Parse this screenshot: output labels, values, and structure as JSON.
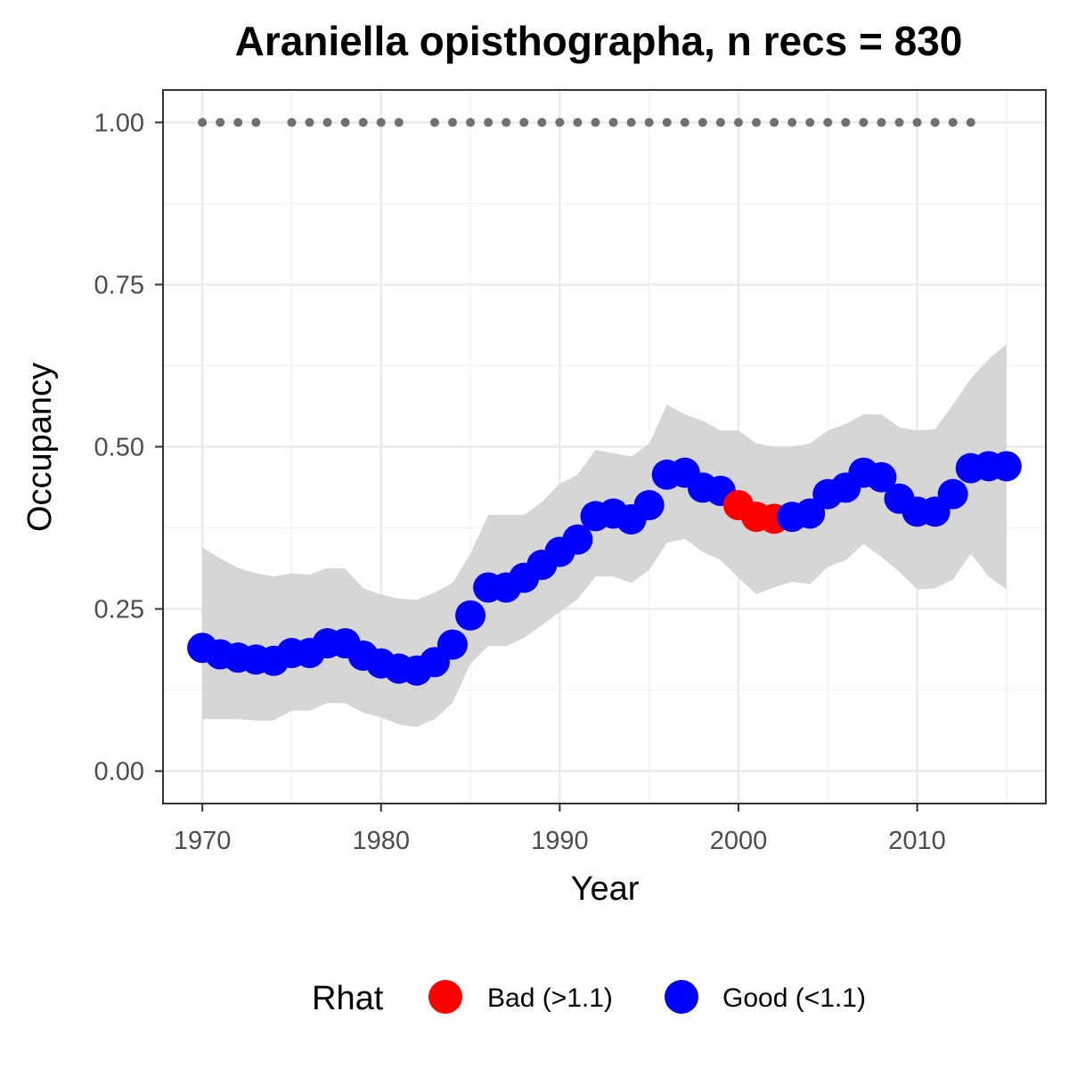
{
  "chart_data": {
    "type": "scatter",
    "title": "Araniella opisthographa, n recs = 830",
    "xlabel": "Year",
    "ylabel": "Occupancy",
    "xlim": [
      1967.8,
      2017.2
    ],
    "ylim": [
      -0.05,
      1.05
    ],
    "x_ticks": [
      1970,
      1980,
      1990,
      2000,
      2010
    ],
    "y_ticks": [
      0.0,
      0.25,
      0.5,
      0.75,
      1.0
    ],
    "y_tick_labels": [
      "0.00",
      "0.25",
      "0.50",
      "0.75",
      "1.00"
    ],
    "grid": true,
    "legend": {
      "title": "Rhat",
      "position": "bottom",
      "entries": [
        {
          "label": "Bad (>1.1)",
          "color": "#ff0000"
        },
        {
          "label": "Good (<1.1)",
          "color": "#0000ff"
        }
      ]
    },
    "colors": {
      "bad": "#ff0000",
      "good": "#0000ff",
      "ribbon": "#d6d6d6",
      "record_dots": "#707070"
    },
    "series": [
      {
        "x": [
          1970,
          1971,
          1972,
          1973,
          1974,
          1975,
          1976,
          1977,
          1978,
          1979,
          1980,
          1981,
          1982,
          1983,
          1984,
          1985,
          1986,
          1987,
          1988,
          1989,
          1990,
          1991,
          1992,
          1993,
          1994,
          1995,
          1996,
          1997,
          1998,
          1999,
          2000,
          2001,
          2002,
          2003,
          2004,
          2005,
          2006,
          2007,
          2008,
          2009,
          2010,
          2011,
          2012,
          2013,
          2014,
          2015
        ],
        "y": [
          0.19,
          0.18,
          0.175,
          0.172,
          0.17,
          0.182,
          0.182,
          0.197,
          0.197,
          0.178,
          0.166,
          0.158,
          0.155,
          0.168,
          0.195,
          0.24,
          0.283,
          0.283,
          0.298,
          0.318,
          0.338,
          0.357,
          0.393,
          0.397,
          0.388,
          0.41,
          0.457,
          0.46,
          0.437,
          0.432,
          0.41,
          0.392,
          0.389,
          0.392,
          0.397,
          0.427,
          0.437,
          0.46,
          0.453,
          0.42,
          0.4,
          0.4,
          0.427,
          0.467,
          0.47,
          0.47
        ],
        "rhat": [
          "good",
          "good",
          "good",
          "good",
          "good",
          "good",
          "good",
          "good",
          "good",
          "good",
          "good",
          "good",
          "good",
          "good",
          "good",
          "good",
          "good",
          "good",
          "good",
          "good",
          "good",
          "good",
          "good",
          "good",
          "good",
          "good",
          "good",
          "good",
          "good",
          "good",
          "bad",
          "bad",
          "bad",
          "good",
          "good",
          "good",
          "good",
          "good",
          "good",
          "good",
          "good",
          "good",
          "good",
          "good",
          "good",
          "good"
        ],
        "lower": [
          0.08,
          0.08,
          0.08,
          0.078,
          0.078,
          0.093,
          0.093,
          0.105,
          0.105,
          0.09,
          0.083,
          0.072,
          0.068,
          0.08,
          0.105,
          0.165,
          0.193,
          0.193,
          0.205,
          0.225,
          0.245,
          0.265,
          0.3,
          0.3,
          0.29,
          0.31,
          0.352,
          0.358,
          0.338,
          0.325,
          0.298,
          0.273,
          0.283,
          0.292,
          0.288,
          0.315,
          0.325,
          0.35,
          0.33,
          0.307,
          0.28,
          0.282,
          0.295,
          0.335,
          0.3,
          0.28
        ],
        "upper": [
          0.345,
          0.328,
          0.313,
          0.305,
          0.3,
          0.305,
          0.303,
          0.313,
          0.312,
          0.282,
          0.272,
          0.266,
          0.264,
          0.275,
          0.29,
          0.335,
          0.395,
          0.395,
          0.395,
          0.415,
          0.443,
          0.457,
          0.495,
          0.49,
          0.485,
          0.505,
          0.565,
          0.55,
          0.54,
          0.525,
          0.525,
          0.505,
          0.5,
          0.5,
          0.505,
          0.525,
          0.535,
          0.55,
          0.55,
          0.53,
          0.525,
          0.527,
          0.565,
          0.605,
          0.635,
          0.658
        ]
      }
    ],
    "record_years": [
      1970,
      1971,
      1972,
      1973,
      1975,
      1976,
      1977,
      1978,
      1979,
      1980,
      1981,
      1983,
      1984,
      1985,
      1986,
      1987,
      1988,
      1989,
      1990,
      1991,
      1992,
      1993,
      1994,
      1995,
      1996,
      1997,
      1998,
      1999,
      2000,
      2001,
      2002,
      2003,
      2004,
      2005,
      2006,
      2007,
      2008,
      2009,
      2010,
      2011,
      2012,
      2013
    ],
    "record_value": 1.0
  }
}
